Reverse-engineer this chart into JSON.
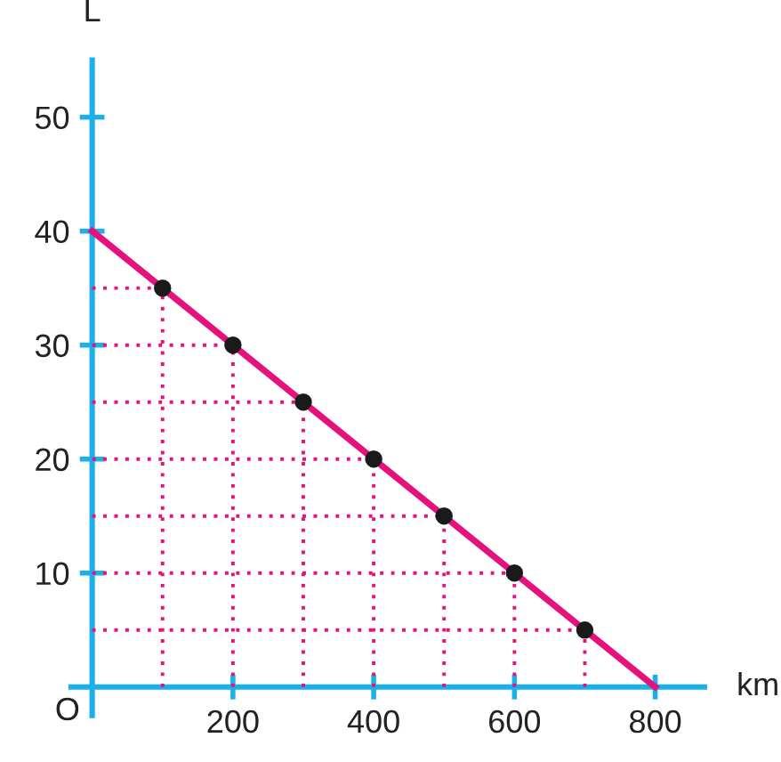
{
  "chart_data": {
    "type": "line",
    "xlabel": "km",
    "ylabel": "L",
    "annotations": [
      "O"
    ],
    "series": [
      {
        "color": "#e5127d",
        "x": [
          0,
          800
        ],
        "values": [
          40,
          0
        ],
        "line_style": "solid"
      },
      {
        "color": "#e5127d",
        "x": [
          0,
          100
        ],
        "values": [
          35,
          35
        ],
        "line_style": "dotted"
      },
      {
        "color": "#e5127d",
        "x": [
          100,
          100
        ],
        "values": [
          0,
          35
        ],
        "line_style": "dotted"
      },
      {
        "color": "#e5127d",
        "x": [
          0,
          200
        ],
        "values": [
          30,
          30
        ],
        "line_style": "dotted"
      },
      {
        "color": "#e5127d",
        "x": [
          200,
          200
        ],
        "values": [
          0,
          30
        ],
        "line_style": "dotted"
      },
      {
        "color": "#e5127d",
        "x": [
          0,
          300
        ],
        "values": [
          25,
          25
        ],
        "line_style": "dotted"
      },
      {
        "color": "#e5127d",
        "x": [
          300,
          300
        ],
        "values": [
          0,
          25
        ],
        "line_style": "dotted"
      },
      {
        "color": "#e5127d",
        "x": [
          0,
          400
        ],
        "values": [
          20,
          20
        ],
        "line_style": "dotted"
      },
      {
        "color": "#e5127d",
        "x": [
          400,
          400
        ],
        "values": [
          0,
          20
        ],
        "line_style": "dotted"
      },
      {
        "color": "#e5127d",
        "x": [
          0,
          500
        ],
        "values": [
          15,
          15
        ],
        "line_style": "dotted"
      },
      {
        "color": "#e5127d",
        "x": [
          500,
          500
        ],
        "values": [
          0,
          15
        ],
        "line_style": "dotted"
      },
      {
        "color": "#e5127d",
        "x": [
          0,
          600
        ],
        "values": [
          10,
          10
        ],
        "line_style": "dotted"
      },
      {
        "color": "#e5127d",
        "x": [
          600,
          600
        ],
        "values": [
          0,
          10
        ],
        "line_style": "dotted"
      },
      {
        "color": "#e5127d",
        "x": [
          0,
          700
        ],
        "values": [
          5,
          5
        ],
        "line_style": "dotted"
      },
      {
        "color": "#e5127d",
        "x": [
          700,
          700
        ],
        "values": [
          0,
          5
        ],
        "line_style": "dotted"
      },
      {
        "type": "scatter",
        "color": "#1a1a1a",
        "x": [
          100,
          200,
          300,
          400,
          500,
          600,
          700
        ],
        "values": [
          35,
          30,
          25,
          20,
          15,
          10,
          5
        ],
        "marker": "circle"
      }
    ],
    "xlim": [
      -30,
      870
    ],
    "ylim": [
      -2.5,
      55
    ],
    "xticks": [
      200,
      400,
      600,
      800
    ],
    "yticks": [
      10,
      20,
      30,
      40,
      50
    ],
    "legend": false
  }
}
